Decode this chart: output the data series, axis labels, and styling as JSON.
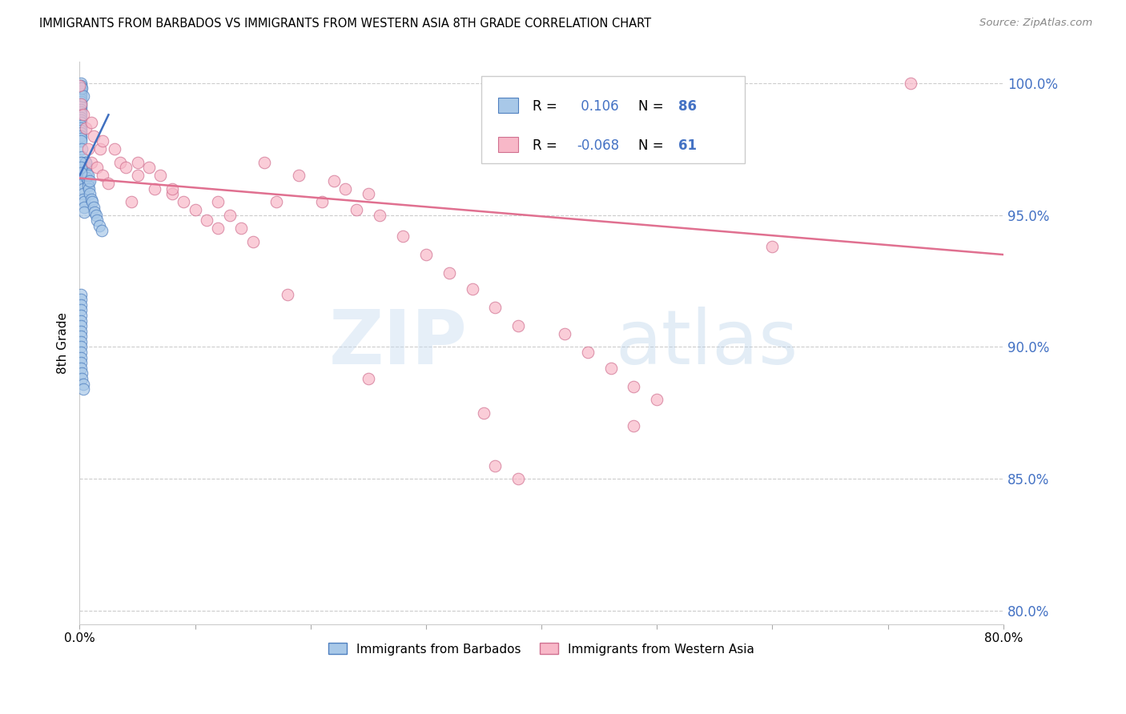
{
  "title": "IMMIGRANTS FROM BARBADOS VS IMMIGRANTS FROM WESTERN ASIA 8TH GRADE CORRELATION CHART",
  "source": "Source: ZipAtlas.com",
  "ylabel": "8th Grade",
  "xlim": [
    0.0,
    0.8
  ],
  "ylim": [
    0.795,
    1.008
  ],
  "yticks": [
    0.8,
    0.85,
    0.9,
    0.95,
    1.0
  ],
  "ytick_labels": [
    "80.0%",
    "85.0%",
    "90.0%",
    "95.0%",
    "100.0%"
  ],
  "xticks": [
    0.0,
    0.1,
    0.2,
    0.3,
    0.4,
    0.5,
    0.6,
    0.7,
    0.8
  ],
  "xtick_labels": [
    "0.0%",
    "",
    "",
    "",
    "",
    "",
    "",
    "",
    "80.0%"
  ],
  "series1_color": "#A8C8E8",
  "series1_edge": "#5080C0",
  "series2_color": "#F8B8C8",
  "series2_edge": "#D07090",
  "trendline1_color": "#4070C0",
  "trendline2_color": "#E07090",
  "R1": 0.106,
  "N1": 86,
  "R2": -0.068,
  "N2": 61,
  "legend_label1": "Immigrants from Barbados",
  "legend_label2": "Immigrants from Western Asia",
  "watermark": "ZIPatlas",
  "blue_trendline": [
    0.0,
    0.965,
    0.025,
    0.988
  ],
  "pink_trendline": [
    0.0,
    0.964,
    0.8,
    0.935
  ],
  "blue_x": [
    0.0,
    0.0,
    0.0,
    0.0,
    0.0,
    0.0,
    0.001,
    0.001,
    0.001,
    0.001,
    0.001,
    0.001,
    0.001,
    0.001,
    0.001,
    0.001,
    0.001,
    0.001,
    0.001,
    0.001,
    0.001,
    0.001,
    0.001,
    0.001,
    0.001,
    0.001,
    0.001,
    0.001,
    0.001,
    0.001,
    0.002,
    0.002,
    0.002,
    0.002,
    0.002,
    0.002,
    0.003,
    0.003,
    0.003,
    0.003,
    0.004,
    0.004,
    0.004,
    0.005,
    0.005,
    0.006,
    0.006,
    0.007,
    0.007,
    0.008,
    0.009,
    0.01,
    0.011,
    0.012,
    0.013,
    0.014,
    0.015,
    0.017,
    0.019,
    0.002,
    0.003,
    0.005,
    0.007,
    0.009,
    0.001,
    0.001,
    0.001,
    0.001,
    0.001,
    0.001,
    0.001,
    0.001,
    0.001,
    0.001,
    0.001,
    0.001,
    0.001,
    0.001,
    0.001,
    0.001,
    0.001,
    0.001,
    0.002,
    0.002,
    0.003,
    0.003
  ],
  "blue_y": [
    0.998,
    0.997,
    0.996,
    0.995,
    0.994,
    0.993,
    1.0,
    0.999,
    0.998,
    0.997,
    0.996,
    0.995,
    0.994,
    0.993,
    0.992,
    0.991,
    0.99,
    0.989,
    0.988,
    0.987,
    0.986,
    0.985,
    0.984,
    0.983,
    0.982,
    0.981,
    0.98,
    0.979,
    0.978,
    0.965,
    0.975,
    0.972,
    0.97,
    0.968,
    0.966,
    0.964,
    0.962,
    0.96,
    0.958,
    0.956,
    0.955,
    0.953,
    0.951,
    0.97,
    0.968,
    0.966,
    0.964,
    0.963,
    0.961,
    0.96,
    0.958,
    0.956,
    0.955,
    0.953,
    0.951,
    0.95,
    0.948,
    0.946,
    0.944,
    0.998,
    0.995,
    0.97,
    0.965,
    0.963,
    0.97,
    0.968,
    0.966,
    0.92,
    0.918,
    0.916,
    0.914,
    0.912,
    0.91,
    0.908,
    0.906,
    0.904,
    0.902,
    0.9,
    0.898,
    0.896,
    0.894,
    0.892,
    0.89,
    0.888,
    0.886,
    0.884
  ],
  "pink_x": [
    0.0,
    0.001,
    0.003,
    0.005,
    0.007,
    0.01,
    0.012,
    0.015,
    0.018,
    0.02,
    0.025,
    0.03,
    0.035,
    0.04,
    0.045,
    0.05,
    0.06,
    0.065,
    0.07,
    0.08,
    0.09,
    0.1,
    0.11,
    0.12,
    0.13,
    0.14,
    0.15,
    0.16,
    0.17,
    0.19,
    0.21,
    0.22,
    0.23,
    0.24,
    0.25,
    0.26,
    0.28,
    0.3,
    0.32,
    0.34,
    0.36,
    0.38,
    0.4,
    0.42,
    0.44,
    0.46,
    0.48,
    0.5,
    0.36,
    0.38,
    0.72,
    0.01,
    0.02,
    0.05,
    0.08,
    0.12,
    0.18,
    0.25,
    0.35,
    0.48,
    0.6
  ],
  "pink_y": [
    0.999,
    0.992,
    0.988,
    0.983,
    0.975,
    0.97,
    0.98,
    0.968,
    0.975,
    0.965,
    0.962,
    0.975,
    0.97,
    0.968,
    0.955,
    0.965,
    0.968,
    0.96,
    0.965,
    0.958,
    0.955,
    0.952,
    0.948,
    0.955,
    0.95,
    0.945,
    0.94,
    0.97,
    0.955,
    0.965,
    0.955,
    0.963,
    0.96,
    0.952,
    0.958,
    0.95,
    0.942,
    0.935,
    0.928,
    0.922,
    0.915,
    0.908,
    0.985,
    0.905,
    0.898,
    0.892,
    0.885,
    0.88,
    0.855,
    0.85,
    1.0,
    0.985,
    0.978,
    0.97,
    0.96,
    0.945,
    0.92,
    0.888,
    0.875,
    0.87,
    0.938
  ]
}
